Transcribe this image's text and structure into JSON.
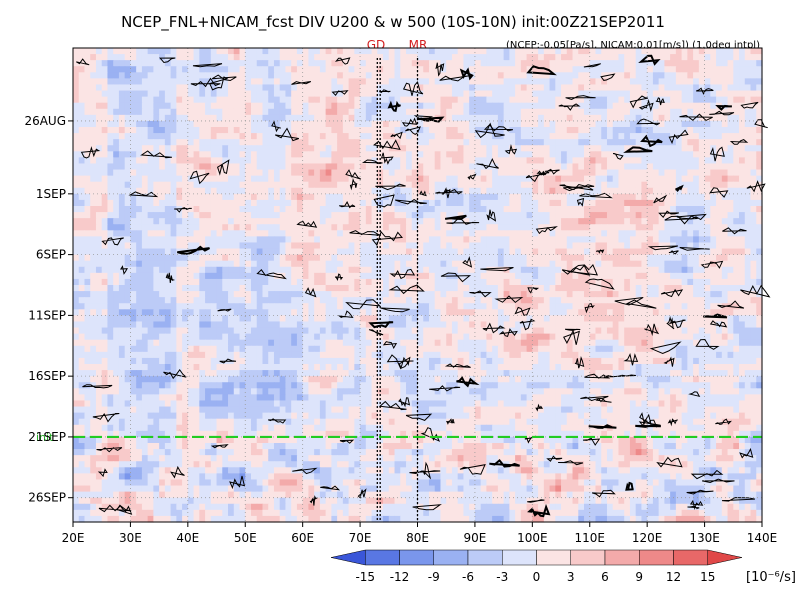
{
  "chart_data": {
    "type": "heatmap",
    "title": "NCEP_FNL+NICAM_fcst DIV U200 & w 500 (10S-10N) init:00Z21SEP2011",
    "subtitle": "(NCEP:-0.05[Pa/s], NICAM:0.01[m/s]) (1.0deg intpl)",
    "x_axis": {
      "ticks": [
        "20E",
        "30E",
        "40E",
        "50E",
        "60E",
        "70E",
        "80E",
        "90E",
        "100E",
        "110E",
        "120E",
        "130E",
        "140E"
      ],
      "range": [
        20,
        140
      ]
    },
    "y_axis": {
      "ticks": [
        "26AUG",
        "1SEP",
        "6SEP",
        "11SEP",
        "16SEP",
        "21SEP",
        "26SEP"
      ],
      "tick_days": [
        26,
        32,
        37,
        42,
        47,
        52,
        57
      ],
      "range_days": [
        20,
        59
      ]
    },
    "markers": {
      "gd_label": "GD",
      "mr_label": "MR",
      "gd_lon": [
        73,
        73.5
      ],
      "mr_lon": [
        80
      ],
      "init_label": "init",
      "init_day": 52
    },
    "colorbar": {
      "levels": [
        "-15",
        "-12",
        "-9",
        "-6",
        "-3",
        "0",
        "3",
        "6",
        "9",
        "12",
        "15"
      ],
      "unit": "[10⁻⁶/s]",
      "colors": [
        "#3a56d9",
        "#5977e3",
        "#7a96ec",
        "#9ab1f2",
        "#bccbf7",
        "#dde4fb",
        "#fbe4e4",
        "#f8caca",
        "#f3aaaa",
        "#ee8989",
        "#e86868",
        "#e04848"
      ]
    },
    "grid": true
  }
}
